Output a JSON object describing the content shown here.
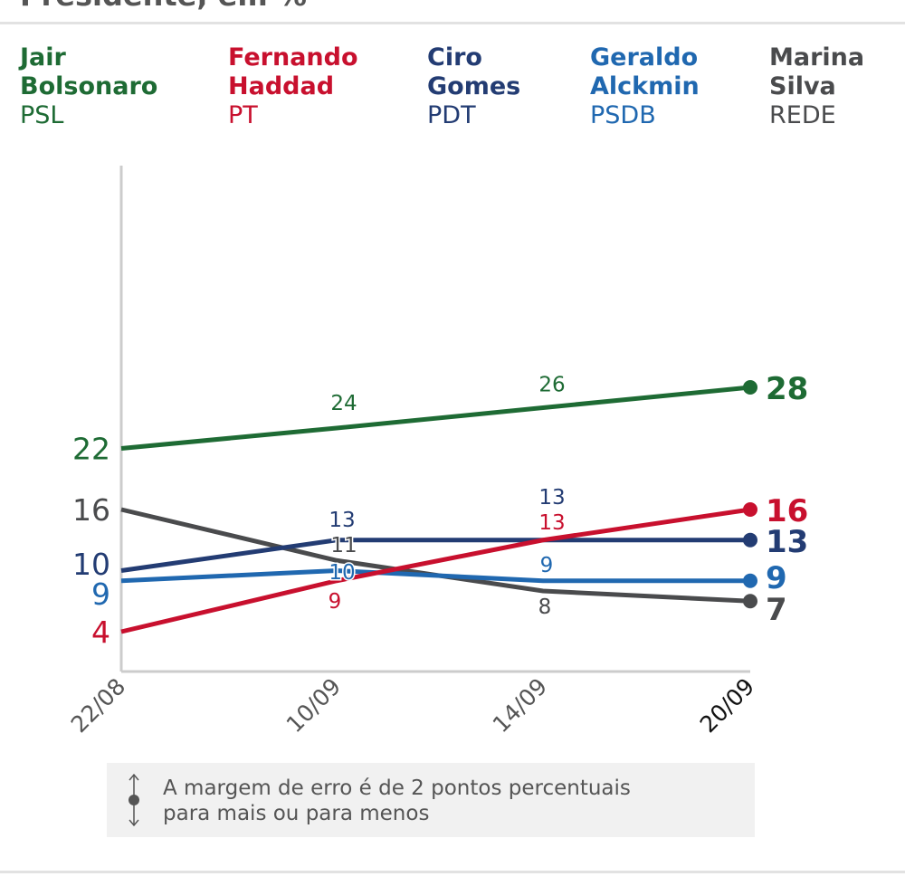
{
  "header": {
    "title": "Presidente, em %"
  },
  "chart_data": {
    "type": "line",
    "categories": [
      "22/08",
      "10/09",
      "14/09",
      "20/09"
    ],
    "ylim": [
      4,
      28
    ],
    "grid": false,
    "legend_position": "top",
    "series": [
      {
        "name": "Jair Bolsonaro",
        "party": "PSL",
        "color": "#1e6b34",
        "values": [
          22,
          24,
          26,
          28
        ],
        "name_lines": [
          "Jair",
          "Bolsonaro"
        ]
      },
      {
        "name": "Fernando Haddad",
        "party": "PT",
        "color": "#c8102e",
        "values": [
          4,
          9,
          13,
          16
        ],
        "name_lines": [
          "Fernando",
          "Haddad"
        ]
      },
      {
        "name": "Ciro Gomes",
        "party": "PDT",
        "color": "#233c73",
        "values": [
          10,
          13,
          13,
          13
        ],
        "name_lines": [
          "Ciro",
          "Gomes"
        ]
      },
      {
        "name": "Geraldo Alckmin",
        "party": "PSDB",
        "color": "#2068b0",
        "values": [
          9,
          10,
          9,
          9
        ],
        "name_lines": [
          "Geraldo",
          "Alckmin"
        ]
      },
      {
        "name": "Marina Silva",
        "party": "REDE",
        "color": "#4a4b4d",
        "values": [
          16,
          11,
          8,
          7
        ],
        "name_lines": [
          "Marina",
          "Silva"
        ]
      }
    ]
  },
  "note": {
    "line1": "A margem de erro é de 2 pontos percentuais",
    "line2": "para mais ou para menos",
    "icon": "error-margin-arrows-icon"
  }
}
